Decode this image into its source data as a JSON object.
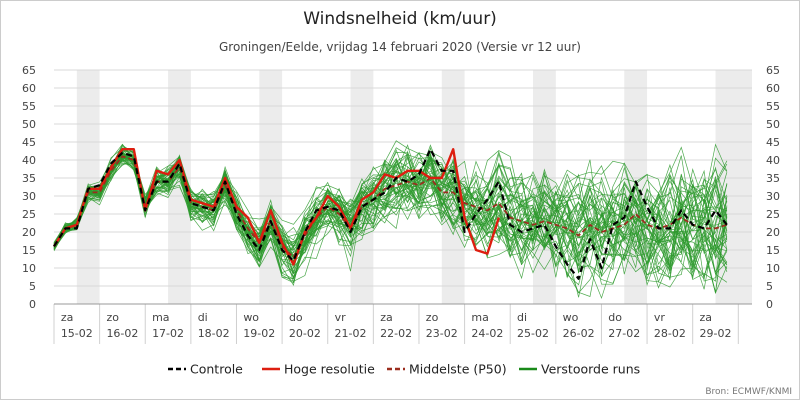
{
  "chart_data": {
    "type": "line",
    "title": "Windsnelheid (km/uur)",
    "subtitle": "Groningen/Eelde, vrijdag 14 februari 2020 (Versie vr 12 uur)",
    "source": "Bron: ECMWF/KNMI",
    "ylim": [
      0,
      65
    ],
    "yticks": [
      "0",
      "5",
      "10",
      "15",
      "20",
      "25",
      "30",
      "35",
      "40",
      "45",
      "50",
      "55",
      "60",
      "65"
    ],
    "xlim": [
      0,
      15.3
    ],
    "grid": true,
    "legend_position": "bottom",
    "day_labels": [
      {
        "day": "za",
        "date": "15-02"
      },
      {
        "day": "zo",
        "date": "16-02"
      },
      {
        "day": "ma",
        "date": "17-02"
      },
      {
        "day": "di",
        "date": "18-02"
      },
      {
        "day": "wo",
        "date": "19-02"
      },
      {
        "day": "do",
        "date": "20-02"
      },
      {
        "day": "vr",
        "date": "21-02"
      },
      {
        "day": "za",
        "date": "22-02"
      },
      {
        "day": "zo",
        "date": "23-02"
      },
      {
        "day": "ma",
        "date": "24-02"
      },
      {
        "day": "di",
        "date": "25-02"
      },
      {
        "day": "wo",
        "date": "26-02"
      },
      {
        "day": "do",
        "date": "27-02"
      },
      {
        "day": "vr",
        "date": "28-02"
      },
      {
        "day": "za",
        "date": "29-02"
      }
    ],
    "legend": [
      {
        "label": "Controle",
        "color": "#000000",
        "style": "dashed"
      },
      {
        "label": "Hoge resolutie",
        "color": "#dd1e10",
        "style": "solid"
      },
      {
        "label": "Middelste (P50)",
        "color": "#9b2d1e",
        "style": "dashed"
      },
      {
        "label": "Verstoorde runs",
        "color": "#1a8a1a",
        "style": "solid"
      }
    ],
    "series": [
      {
        "name": "Hoge resolutie",
        "color": "#dd1e10",
        "x": [
          0,
          0.25,
          0.5,
          0.75,
          1,
          1.25,
          1.5,
          1.75,
          2,
          2.25,
          2.5,
          2.75,
          3,
          3.25,
          3.5,
          3.75,
          4,
          4.25,
          4.5,
          4.75,
          5,
          5.25,
          5.5,
          5.75,
          6,
          6.25,
          6.5,
          6.75,
          7,
          7.25,
          7.5,
          7.75,
          8,
          8.25,
          8.5,
          8.75,
          9,
          9.25,
          9.5,
          9.75
        ],
        "values": [
          16,
          21,
          22,
          32,
          32,
          38,
          43,
          43,
          26,
          37,
          36,
          40,
          29,
          28,
          27,
          35,
          27,
          24,
          17,
          26,
          17,
          11,
          20,
          24,
          30,
          27,
          21,
          29,
          31,
          36,
          35,
          37,
          37,
          35,
          35,
          43,
          24,
          15,
          14,
          24
        ]
      },
      {
        "name": "Controle",
        "color": "#000000",
        "x": [
          0,
          0.25,
          0.5,
          0.75,
          1,
          1.25,
          1.5,
          1.75,
          2,
          2.25,
          2.5,
          2.75,
          3,
          3.25,
          3.5,
          3.75,
          4,
          4.25,
          4.5,
          4.75,
          5,
          5.25,
          5.5,
          5.75,
          6,
          6.25,
          6.5,
          6.75,
          7,
          7.25,
          7.5,
          7.75,
          8,
          8.25,
          8.5,
          8.75,
          9,
          9.25,
          9.5,
          9.75,
          10,
          10.25,
          10.5,
          10.75,
          11,
          11.25,
          11.5,
          11.75,
          12,
          12.25,
          12.5,
          12.75,
          13,
          13.25,
          13.5,
          13.75,
          14,
          14.25,
          14.5,
          14.75
        ],
        "values": [
          16,
          21,
          21,
          32,
          33,
          39,
          42,
          41,
          26,
          34,
          34,
          39,
          28,
          27,
          26,
          34,
          25,
          19,
          15,
          23,
          15,
          12,
          20,
          26,
          27,
          26,
          20,
          27,
          29,
          31,
          35,
          34,
          36,
          43,
          37,
          37,
          20,
          25,
          29,
          34,
          22,
          20,
          21,
          22,
          16,
          11,
          7,
          18,
          10,
          22,
          24,
          34,
          27,
          21,
          21,
          26,
          22,
          21,
          26,
          22
        ]
      },
      {
        "name": "Middelste (P50)",
        "color": "#9b2d1e",
        "x": [
          0,
          0.25,
          0.5,
          0.75,
          1,
          1.25,
          1.5,
          1.75,
          2,
          2.25,
          2.5,
          2.75,
          3,
          3.25,
          3.5,
          3.75,
          4,
          4.25,
          4.5,
          4.75,
          5,
          5.25,
          5.5,
          5.75,
          6,
          6.25,
          6.5,
          6.75,
          7,
          7.25,
          7.5,
          7.75,
          8,
          8.25,
          8.5,
          8.75,
          9,
          9.25,
          9.5,
          9.75,
          10,
          10.25,
          10.5,
          10.75,
          11,
          11.25,
          11.5,
          11.75,
          12,
          12.25,
          12.5,
          12.75,
          13,
          13.25,
          13.5,
          13.75,
          14,
          14.25,
          14.5,
          14.75
        ],
        "values": [
          16,
          21,
          22,
          31,
          31,
          37,
          41,
          40,
          27,
          34,
          34,
          38,
          28,
          27,
          26,
          33,
          26,
          21,
          17,
          23,
          16,
          13,
          19,
          24,
          27,
          25,
          21,
          27,
          29,
          32,
          33,
          34,
          33,
          35,
          31,
          31,
          28,
          27,
          26,
          28,
          24,
          23,
          22,
          23,
          22,
          21,
          19,
          22,
          20,
          21,
          22,
          25,
          22,
          21,
          22,
          24,
          22,
          21,
          21,
          22
        ]
      }
    ]
  }
}
